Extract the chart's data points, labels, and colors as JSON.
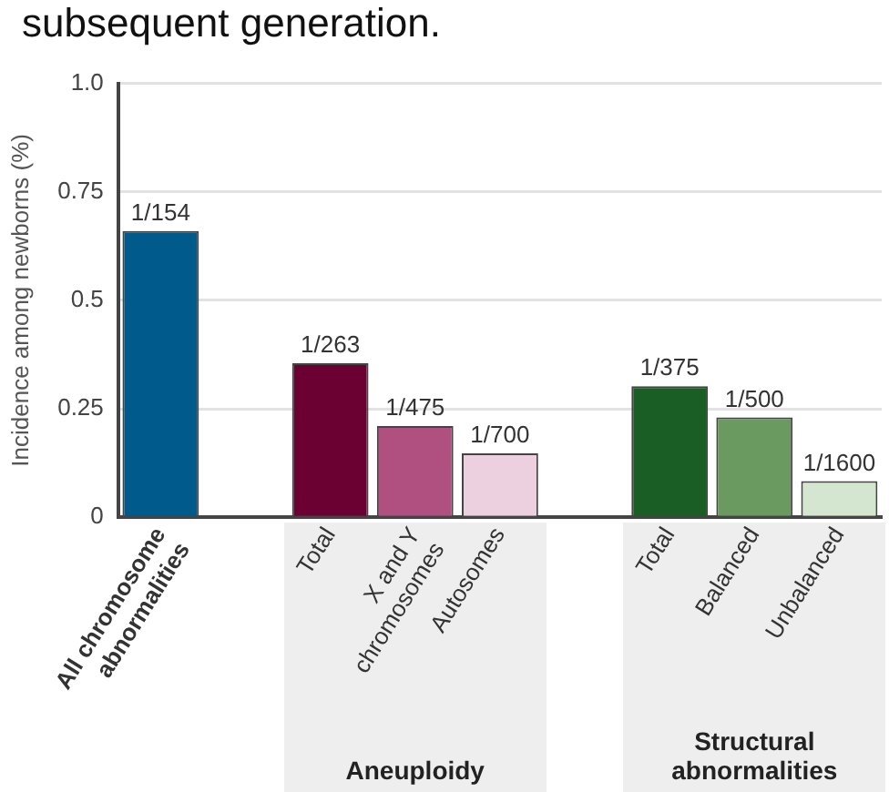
{
  "chart_data": {
    "type": "bar",
    "title": "subsequent generation.",
    "ylabel": "Incidence among newborns (%)",
    "categories": [
      "All chromosome\nabnormalities",
      null,
      "Total",
      "X and Y\nchromosomes",
      "Autosomes",
      null,
      "Total",
      "Balanced",
      "Unbalanced"
    ],
    "values": [
      0.66,
      null,
      0.355,
      0.21,
      0.147,
      null,
      0.302,
      0.23,
      0.083
    ],
    "colors": [
      "#005a8c",
      null,
      "#6b0033",
      "#b05080",
      "#ecd0e0",
      null,
      "#1a5e25",
      "#6a9a60",
      "#d5e6d0"
    ],
    "value_labels": [
      "1/154",
      null,
      "1/263",
      "1/475",
      "1/700",
      null,
      "1/375",
      "1/500",
      "1/1600"
    ],
    "ylim": [
      0,
      1
    ],
    "yticks": [
      0,
      0.25,
      0.5,
      0.75,
      {
        "value": 1,
        "label": "1.0"
      }
    ],
    "grid": "y",
    "annotations": [
      "Aneuploidy",
      "Structural\nabnormalities"
    ]
  }
}
